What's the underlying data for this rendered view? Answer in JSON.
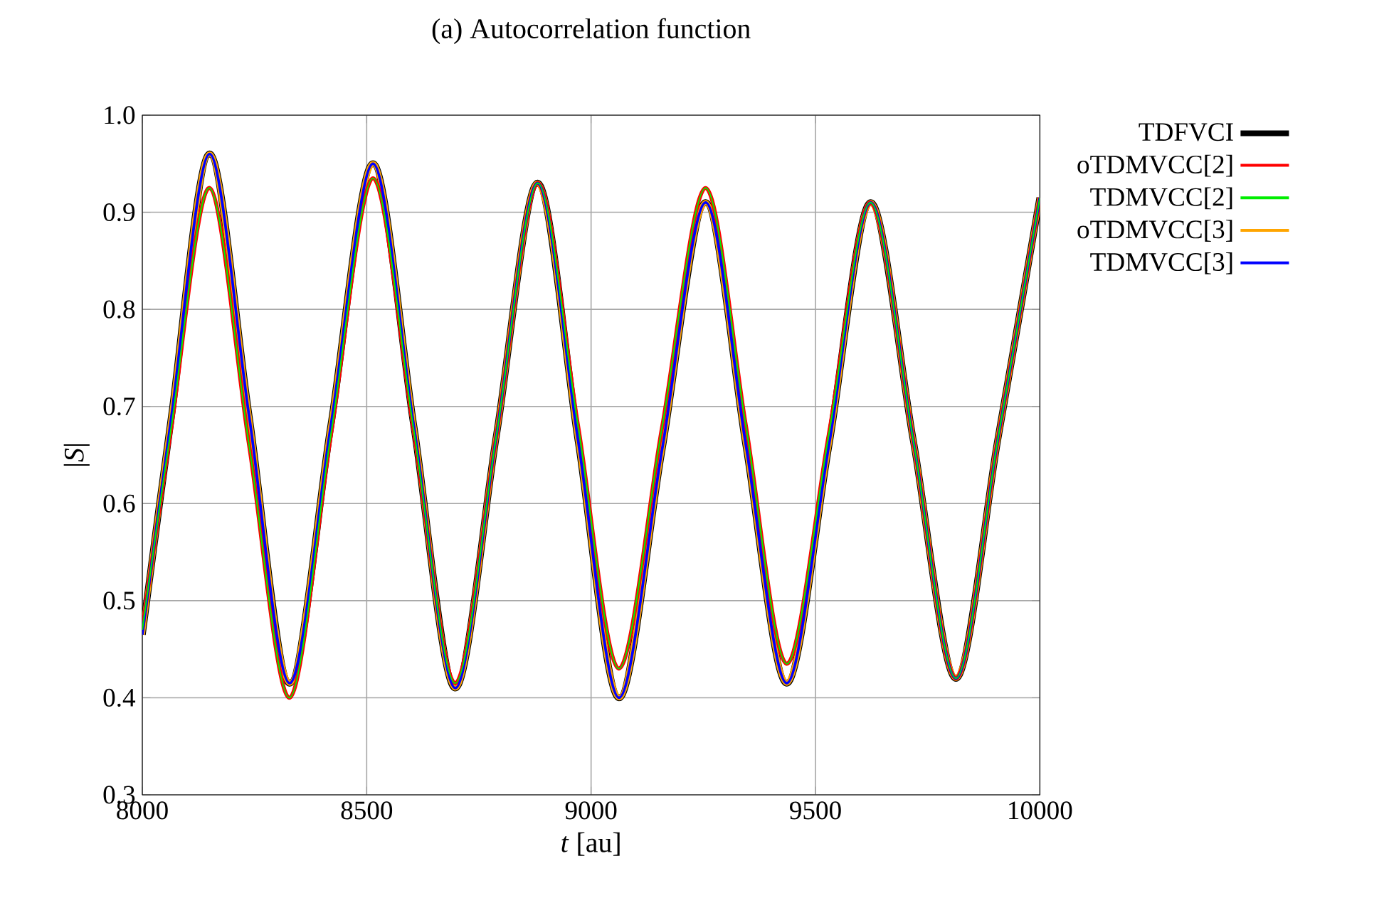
{
  "chart_data": {
    "type": "line",
    "title": "(a) Autocorrelation function",
    "xlabel": "*t* [au]",
    "ylabel": "|*S*|",
    "xlim": [
      8000,
      10000
    ],
    "xticks": [
      8000,
      8500,
      9000,
      9500,
      10000
    ],
    "ylim": [
      0.3,
      1.0
    ],
    "yticks": [
      {
        "value": 0.3,
        "label": "0.3"
      },
      {
        "value": 0.4,
        "label": "0.4"
      },
      {
        "value": 0.5,
        "label": "0.5"
      },
      {
        "value": 0.6,
        "label": "0.6"
      },
      {
        "value": 0.7,
        "label": "0.7"
      },
      {
        "value": 0.8,
        "label": "0.8"
      },
      {
        "value": 0.9,
        "label": "0.9"
      },
      {
        "value": 1.0,
        "label": "1.0"
      }
    ],
    "grid": true,
    "legend": "right",
    "x": [
      8000,
      8065,
      8150,
      8238,
      8328,
      8420,
      8514,
      8605,
      8697,
      8789,
      8881,
      8971,
      9062,
      9158,
      9255,
      9345,
      9436,
      9530,
      9623,
      9718,
      9813,
      9906,
      10000
    ],
    "series": [
      {
        "name": "TDFVCI",
        "color": "#000000",
        "values": [
          0.465,
          0.69,
          0.96,
          0.69,
          0.415,
          0.68,
          0.95,
          0.68,
          0.41,
          0.67,
          0.93,
          0.665,
          0.4,
          0.655,
          0.91,
          0.66,
          0.415,
          0.66,
          0.91,
          0.665,
          0.42,
          0.665,
          0.915
        ]
      },
      {
        "name": "oTDMVCC[2]",
        "color": "#ff0000",
        "values": [
          0.47,
          0.68,
          0.925,
          0.66,
          0.4,
          0.67,
          0.935,
          0.675,
          0.415,
          0.67,
          0.93,
          0.68,
          0.43,
          0.678,
          0.925,
          0.68,
          0.435,
          0.672,
          0.91,
          0.665,
          0.42,
          0.665,
          0.915
        ]
      },
      {
        "name": "TDMVCC[2]",
        "color": "#00ee00",
        "values": [
          0.47,
          0.68,
          0.925,
          0.66,
          0.4,
          0.67,
          0.935,
          0.675,
          0.415,
          0.67,
          0.93,
          0.68,
          0.43,
          0.678,
          0.925,
          0.68,
          0.435,
          0.672,
          0.91,
          0.665,
          0.42,
          0.665,
          0.915
        ]
      },
      {
        "name": "oTDMVCC[3]",
        "color": "#ffa500",
        "values": [
          0.465,
          0.69,
          0.96,
          0.69,
          0.415,
          0.68,
          0.95,
          0.68,
          0.41,
          0.67,
          0.93,
          0.665,
          0.4,
          0.655,
          0.91,
          0.66,
          0.415,
          0.66,
          0.91,
          0.665,
          0.42,
          0.665,
          0.915
        ]
      },
      {
        "name": "TDMVCC[3]",
        "color": "#0000ff",
        "values": [
          0.465,
          0.69,
          0.96,
          0.69,
          0.415,
          0.68,
          0.95,
          0.68,
          0.41,
          0.67,
          0.93,
          0.665,
          0.4,
          0.655,
          0.91,
          0.66,
          0.415,
          0.66,
          0.91,
          0.665,
          0.42,
          0.665,
          0.915
        ]
      }
    ]
  }
}
